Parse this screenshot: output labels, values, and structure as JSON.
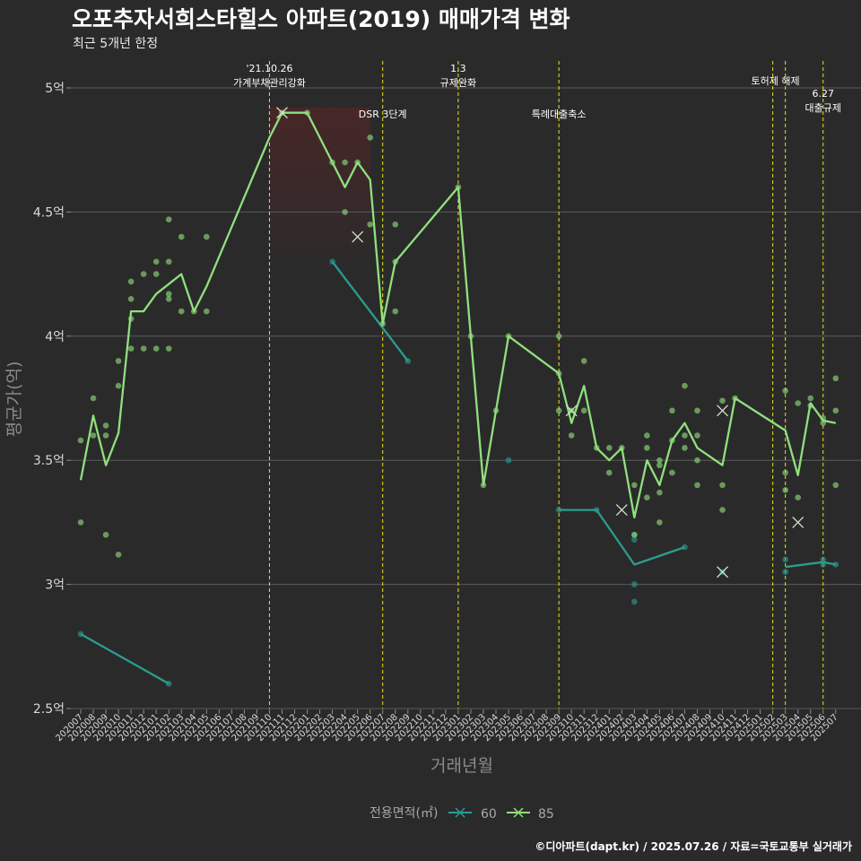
{
  "title": "오포추자서희스타힐스 아파트(2019) 매매가격 변화",
  "subtitle": "최근 5개년 한정",
  "caption": "©디아파트(dapt.kr) / 2025.07.26 / 자료=국토교통부 실거래가",
  "colors": {
    "background": "#2b2a2b",
    "grid": "#5a5a5a",
    "vline": "#e6e619",
    "s60": "#2a9d8f",
    "s85": "#90e07d",
    "band": "#7d2020"
  },
  "chart_data": {
    "type": "line",
    "xlabel": "거래년월",
    "ylabel": "평균가(억)",
    "ylim": [
      2.5,
      5.1
    ],
    "yticks": [
      2.5,
      3,
      3.5,
      4,
      4.5,
      5
    ],
    "ytick_labels": [
      "2.5억",
      "3억",
      "3.5억",
      "4억",
      "4.5억",
      "5억"
    ],
    "categories": [
      "202007",
      "202008",
      "202009",
      "202010",
      "202011",
      "202012",
      "202101",
      "202102",
      "202103",
      "202104",
      "202105",
      "202106",
      "202107",
      "202108",
      "202109",
      "202110",
      "202111",
      "202112",
      "202201",
      "202202",
      "202203",
      "202204",
      "202205",
      "202206",
      "202207",
      "202208",
      "202209",
      "202210",
      "202211",
      "202212",
      "202301",
      "202302",
      "202303",
      "202304",
      "202305",
      "202306",
      "202307",
      "202308",
      "202309",
      "202310",
      "202311",
      "202312",
      "202401",
      "202402",
      "202403",
      "202404",
      "202405",
      "202406",
      "202407",
      "202408",
      "202409",
      "202410",
      "202411",
      "202412",
      "202501",
      "202502",
      "202503",
      "202504",
      "202505",
      "202506",
      "202507"
    ],
    "legend_title": "전용면적(㎡)",
    "shaded_band": {
      "from": "202110",
      "to": "202206"
    },
    "events": [
      {
        "x": "202110",
        "label": "'21.10.26\n가계부채관리강화",
        "level": 1
      },
      {
        "x": "202207",
        "label": "DSR 3단계",
        "level": 2
      },
      {
        "x": "202301",
        "label": "1.3\n규제완화",
        "level": 1
      },
      {
        "x": "202309",
        "label": "특례대출축소",
        "level": 2
      },
      {
        "x": "202502",
        "label": "토허제 해제",
        "level": 1,
        "anchor": "end"
      },
      {
        "x": "202503",
        "label": "",
        "level": 1
      },
      {
        "x": "202506",
        "label": "6.27\n대출규제",
        "level": 3
      }
    ],
    "series": [
      {
        "name": "60",
        "color": "#2a9d8f",
        "line": [
          [
            [
              "202007",
              2.8
            ],
            [
              "202102",
              2.6
            ]
          ],
          [
            [
              "202203",
              4.3
            ],
            [
              "202209",
              3.9
            ]
          ],
          [
            [
              "202309",
              3.3
            ],
            [
              "202312",
              3.3
            ],
            [
              "202403",
              3.08
            ],
            [
              "202407",
              3.15
            ]
          ],
          [
            [
              "202503",
              3.07
            ],
            [
              "202506",
              3.09
            ],
            [
              "202507",
              3.08
            ]
          ]
        ],
        "points": [
          [
            "202007",
            2.8
          ],
          [
            "202102",
            2.6
          ],
          [
            "202203",
            4.3
          ],
          [
            "202209",
            3.9
          ],
          [
            "202305",
            3.5
          ],
          [
            "202309",
            3.3
          ],
          [
            "202312",
            3.3
          ],
          [
            "202403",
            3.2
          ],
          [
            "202403",
            3.18
          ],
          [
            "202403",
            3.0
          ],
          [
            "202403",
            2.93
          ],
          [
            "202407",
            3.15
          ],
          [
            "202410",
            3.05
          ],
          [
            "202503",
            3.1
          ],
          [
            "202503",
            3.05
          ],
          [
            "202506",
            3.1
          ],
          [
            "202506",
            3.08
          ],
          [
            "202507",
            3.08
          ]
        ],
        "crosses": [
          [
            "202410",
            3.05
          ]
        ]
      },
      {
        "name": "85",
        "color": "#90e07d",
        "line": [
          [
            [
              "202007",
              3.42
            ],
            [
              "202008",
              3.68
            ],
            [
              "202009",
              3.48
            ],
            [
              "202010",
              3.61
            ],
            [
              "202011",
              4.1
            ],
            [
              "202012",
              4.1
            ],
            [
              "202101",
              4.17
            ],
            [
              "202102",
              4.21
            ],
            [
              "202103",
              4.25
            ],
            [
              "202104",
              4.1
            ],
            [
              "202105",
              4.2
            ],
            [
              "202110",
              4.8
            ],
            [
              "202111",
              4.9
            ],
            [
              "202201",
              4.9
            ],
            [
              "202203",
              4.7
            ],
            [
              "202204",
              4.6
            ],
            [
              "202205",
              4.7
            ],
            [
              "202206",
              4.63
            ],
            [
              "202207",
              4.05
            ],
            [
              "202208",
              4.3
            ],
            [
              "202301",
              4.6
            ],
            [
              "202302",
              4.0
            ],
            [
              "202303",
              3.4
            ],
            [
              "202304",
              3.7
            ],
            [
              "202305",
              4.0
            ],
            [
              "202309",
              3.85
            ],
            [
              "202310",
              3.65
            ],
            [
              "202311",
              3.8
            ],
            [
              "202312",
              3.55
            ],
            [
              "202401",
              3.5
            ],
            [
              "202402",
              3.55
            ],
            [
              "202403",
              3.27
            ],
            [
              "202404",
              3.5
            ],
            [
              "202405",
              3.4
            ],
            [
              "202406",
              3.58
            ],
            [
              "202407",
              3.65
            ],
            [
              "202408",
              3.55
            ],
            [
              "202410",
              3.48
            ],
            [
              "202411",
              3.75
            ],
            [
              "202503",
              3.62
            ],
            [
              "202504",
              3.44
            ],
            [
              "202505",
              3.73
            ],
            [
              "202506",
              3.66
            ],
            [
              "202507",
              3.65
            ]
          ]
        ],
        "points": [
          [
            "202007",
            3.58
          ],
          [
            "202007",
            3.25
          ],
          [
            "202008",
            3.75
          ],
          [
            "202008",
            3.6
          ],
          [
            "202009",
            3.64
          ],
          [
            "202009",
            3.6
          ],
          [
            "202009",
            3.2
          ],
          [
            "202010",
            3.9
          ],
          [
            "202010",
            3.8
          ],
          [
            "202010",
            3.12
          ],
          [
            "202011",
            4.22
          ],
          [
            "202011",
            4.15
          ],
          [
            "202011",
            4.07
          ],
          [
            "202011",
            3.95
          ],
          [
            "202012",
            4.25
          ],
          [
            "202012",
            3.95
          ],
          [
            "202101",
            4.3
          ],
          [
            "202101",
            4.25
          ],
          [
            "202101",
            3.95
          ],
          [
            "202102",
            4.47
          ],
          [
            "202102",
            4.3
          ],
          [
            "202102",
            4.17
          ],
          [
            "202102",
            4.15
          ],
          [
            "202102",
            3.95
          ],
          [
            "202103",
            4.4
          ],
          [
            "202103",
            4.1
          ],
          [
            "202104",
            4.1
          ],
          [
            "202105",
            4.4
          ],
          [
            "202105",
            4.1
          ],
          [
            "202111",
            4.9
          ],
          [
            "202201",
            4.9
          ],
          [
            "202203",
            4.7
          ],
          [
            "202204",
            4.7
          ],
          [
            "202204",
            4.5
          ],
          [
            "202205",
            4.7
          ],
          [
            "202206",
            4.8
          ],
          [
            "202206",
            4.45
          ],
          [
            "202207",
            4.05
          ],
          [
            "202208",
            4.45
          ],
          [
            "202208",
            4.3
          ],
          [
            "202208",
            4.1
          ],
          [
            "202301",
            4.6
          ],
          [
            "202302",
            4.0
          ],
          [
            "202303",
            3.4
          ],
          [
            "202304",
            3.7
          ],
          [
            "202305",
            4.0
          ],
          [
            "202309",
            4.0
          ],
          [
            "202309",
            3.85
          ],
          [
            "202309",
            3.7
          ],
          [
            "202310",
            3.6
          ],
          [
            "202310",
            3.7
          ],
          [
            "202311",
            3.9
          ],
          [
            "202311",
            3.7
          ],
          [
            "202312",
            3.55
          ],
          [
            "202401",
            3.45
          ],
          [
            "202401",
            3.55
          ],
          [
            "202402",
            3.55
          ],
          [
            "202403",
            3.4
          ],
          [
            "202403",
            3.2
          ],
          [
            "202404",
            3.6
          ],
          [
            "202404",
            3.55
          ],
          [
            "202404",
            3.35
          ],
          [
            "202405",
            3.5
          ],
          [
            "202405",
            3.48
          ],
          [
            "202405",
            3.37
          ],
          [
            "202405",
            3.25
          ],
          [
            "202406",
            3.7
          ],
          [
            "202406",
            3.58
          ],
          [
            "202406",
            3.45
          ],
          [
            "202407",
            3.8
          ],
          [
            "202407",
            3.6
          ],
          [
            "202407",
            3.55
          ],
          [
            "202408",
            3.7
          ],
          [
            "202408",
            3.6
          ],
          [
            "202408",
            3.5
          ],
          [
            "202408",
            3.4
          ],
          [
            "202410",
            3.74
          ],
          [
            "202410",
            3.4
          ],
          [
            "202410",
            3.3
          ],
          [
            "202411",
            3.75
          ],
          [
            "202503",
            3.78
          ],
          [
            "202503",
            3.45
          ],
          [
            "202503",
            3.38
          ],
          [
            "202504",
            3.73
          ],
          [
            "202504",
            3.35
          ],
          [
            "202505",
            3.75
          ],
          [
            "202505",
            3.72
          ],
          [
            "202506",
            3.67
          ],
          [
            "202506",
            3.65
          ],
          [
            "202507",
            3.83
          ],
          [
            "202507",
            3.7
          ],
          [
            "202507",
            3.4
          ]
        ],
        "crosses": [
          [
            "202111",
            4.9
          ],
          [
            "202205",
            4.4
          ],
          [
            "202310",
            3.7
          ],
          [
            "202402",
            3.3
          ],
          [
            "202410",
            3.7
          ],
          [
            "202504",
            3.25
          ]
        ]
      }
    ]
  }
}
